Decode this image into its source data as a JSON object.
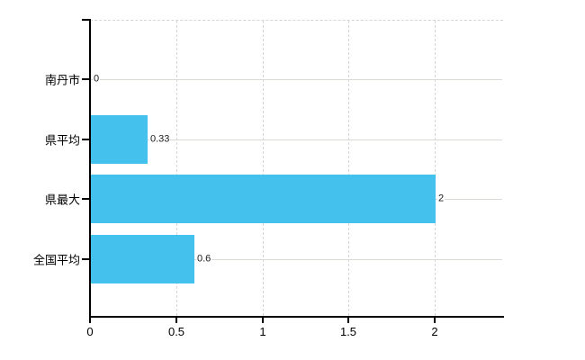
{
  "chart_data": {
    "type": "bar",
    "orientation": "horizontal",
    "title": "",
    "xlabel": "",
    "ylabel": "",
    "categories": [
      "南丹市",
      "県平均",
      "県最大",
      "全国平均"
    ],
    "values": [
      0,
      0.33,
      2,
      0.6
    ],
    "value_labels": [
      "0",
      "0.33",
      "2",
      "0.6"
    ],
    "x_ticks": [
      0,
      0.5,
      1,
      1.5,
      2
    ],
    "x_tick_labels": [
      "0",
      "0.5",
      "1",
      "1.5",
      "2"
    ],
    "xlim": [
      0,
      2.4
    ],
    "grid": true,
    "legend": false,
    "bar_color": "#45c1ee",
    "grid_h_color": "#d6dcd4",
    "grid_v_color": "#d7d3da",
    "axis_color": "#000000",
    "background_color": "#ffffff"
  }
}
